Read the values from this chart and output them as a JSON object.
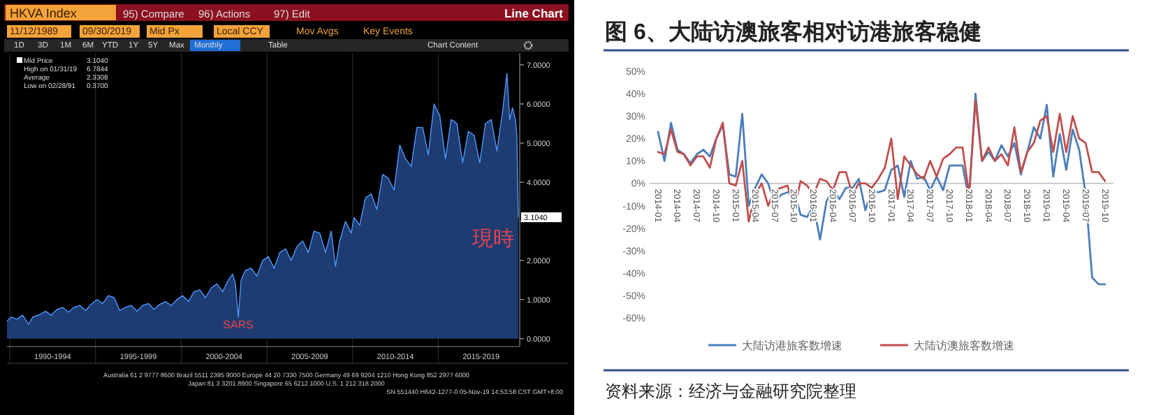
{
  "chart_data": [
    {
      "type": "area",
      "title": "HKVA Index",
      "subtitle": "Line Chart",
      "x": [
        "1989-11",
        "1990-02",
        "1990-06",
        "1990-10",
        "1991-02",
        "1991-05",
        "1991-10",
        "1992-02",
        "1992-06",
        "1992-10",
        "1993-02",
        "1993-06",
        "1993-10",
        "1994-02",
        "1994-06",
        "1994-10",
        "1995-02",
        "1995-06",
        "1995-10",
        "1996-02",
        "1996-06",
        "1996-10",
        "1997-02",
        "1997-06",
        "1997-10",
        "1998-02",
        "1998-06",
        "1998-10",
        "1999-02",
        "1999-06",
        "1999-10",
        "2000-02",
        "2000-06",
        "2000-10",
        "2001-02",
        "2001-06",
        "2001-10",
        "2002-02",
        "2002-06",
        "2002-10",
        "2003-01",
        "2003-03",
        "2003-05",
        "2003-07",
        "2003-10",
        "2004-02",
        "2004-06",
        "2004-10",
        "2005-02",
        "2005-06",
        "2005-10",
        "2006-02",
        "2006-06",
        "2006-10",
        "2007-02",
        "2007-06",
        "2007-10",
        "2008-02",
        "2008-06",
        "2008-10",
        "2009-01",
        "2009-04",
        "2009-08",
        "2009-12",
        "2010-02",
        "2010-06",
        "2010-10",
        "2011-02",
        "2011-06",
        "2011-10",
        "2012-02",
        "2012-06",
        "2012-10",
        "2013-02",
        "2013-06",
        "2013-10",
        "2014-02",
        "2014-06",
        "2014-10",
        "2015-02",
        "2015-06",
        "2015-10",
        "2016-02",
        "2016-06",
        "2016-10",
        "2017-02",
        "2017-06",
        "2017-10",
        "2018-02",
        "2018-06",
        "2018-10",
        "2019-01",
        "2019-03",
        "2019-05",
        "2019-07",
        "2019-08",
        "2019-09"
      ],
      "series": [
        {
          "name": "Mid Price",
          "color": "#1e3c72",
          "values": [
            0.45,
            0.55,
            0.5,
            0.6,
            0.37,
            0.55,
            0.62,
            0.7,
            0.6,
            0.75,
            0.8,
            0.68,
            0.8,
            0.85,
            0.72,
            0.88,
            1.0,
            0.9,
            1.1,
            1.05,
            0.72,
            0.8,
            0.85,
            0.7,
            0.85,
            0.9,
            0.75,
            0.88,
            0.95,
            0.85,
            1.0,
            1.1,
            0.95,
            1.2,
            1.25,
            1.05,
            1.3,
            1.4,
            1.2,
            1.5,
            1.65,
            1.4,
            0.55,
            1.5,
            1.75,
            1.8,
            1.6,
            2.0,
            2.1,
            1.8,
            2.2,
            2.3,
            2.0,
            2.35,
            2.5,
            2.2,
            2.75,
            2.7,
            2.2,
            2.75,
            1.85,
            2.5,
            3.0,
            2.7,
            3.1,
            2.9,
            3.6,
            3.7,
            3.3,
            4.2,
            4.1,
            3.8,
            4.95,
            4.6,
            4.4,
            5.4,
            5.4,
            4.7,
            6.0,
            5.7,
            4.6,
            5.6,
            5.5,
            4.5,
            5.3,
            5.2,
            4.5,
            5.5,
            5.6,
            4.8,
            5.8,
            6.78,
            5.6,
            5.9,
            5.6,
            5.2,
            3.104
          ]
        }
      ],
      "xlim": [
        "1989-11",
        "2019-10"
      ],
      "xticks": [
        {
          "value": "1990-01",
          "label": null
        },
        {
          "value": "1992-07",
          "label": "1990-1994"
        },
        {
          "value": "1995-01",
          "label": null
        },
        {
          "value": "1997-07",
          "label": "1995-1999"
        },
        {
          "value": "2000-01",
          "label": null
        },
        {
          "value": "2002-07",
          "label": "2000-2004"
        },
        {
          "value": "2005-01",
          "label": null
        },
        {
          "value": "2007-07",
          "label": "2005-2009"
        },
        {
          "value": "2010-01",
          "label": null
        },
        {
          "value": "2012-07",
          "label": "2010-2014"
        },
        {
          "value": "2015-01",
          "label": null
        },
        {
          "value": "2017-07",
          "label": "2015-2019"
        }
      ],
      "ylim": [
        -0.2,
        7.3
      ],
      "yticks": [
        {
          "value": 0,
          "label": "0.0000"
        },
        {
          "value": 1,
          "label": "1.0000"
        },
        {
          "value": 2,
          "label": "2.0000"
        },
        {
          "value": 3,
          "label": null
        },
        {
          "value": 4,
          "label": "4.0000"
        },
        {
          "value": 5,
          "label": "5.0000"
        },
        {
          "value": 6,
          "label": "6.0000"
        },
        {
          "value": 7,
          "label": "7.0000"
        }
      ],
      "legend": "top left",
      "grid": "x",
      "annotations": [
        "95) Compare",
        "96) Actions",
        "97) Edit",
        "11/12/1989",
        "09/30/2019",
        "Mid Px",
        "Local CCY",
        "Mov Avgs",
        "Key Events",
        "1D",
        "3D",
        "1M",
        "6M",
        "YTD",
        "1Y",
        "5Y",
        "Max",
        "Monthly",
        "Table",
        "Chart Content",
        "3.1040",
        "High on 01/31/19",
        "6.7844",
        "Average",
        "2.3308",
        "Low on 02/28/91",
        "0.3700",
        {
          "text": "SARS",
          "x": "2003-05",
          "y": 0.55
        },
        {
          "text": "現時",
          "x": "2019-09",
          "y": 3.104
        },
        {
          "text": "3.1040",
          "x": "2019-09",
          "y": 3.104
        },
        "Australia 61 2 9777 8600 Brazil 5511 2395 9000 Europe 44 20 7330 7500 Germany 49 69 9204 1210 Hong Kong 852 2977 6000",
        "Japan 81 3 3201 8900 Singapore 65 6212 1000 U.S. 1 212 318 2000",
        "SN 551440 H642-1277-0 05-Nov-19 14:53:58 CST GMT+8:00"
      ]
    },
    {
      "type": "line",
      "title": "图 6、大陆访澳旅客相对访港旅客稳健",
      "categories": [
        "2014-01",
        null,
        null,
        "2014-04",
        null,
        null,
        "2014-07",
        null,
        null,
        "2014-10",
        null,
        null,
        "2015-01",
        null,
        null,
        "2015-04",
        null,
        null,
        "2015-07",
        null,
        null,
        "2015-10",
        null,
        null,
        "2016-01",
        null,
        null,
        "2016-04",
        null,
        null,
        "2016-07",
        null,
        null,
        "2016-10",
        null,
        null,
        "2017-01",
        null,
        null,
        "2017-04",
        null,
        null,
        "2017-07",
        null,
        null,
        "2017-10",
        null,
        null,
        "2018-01",
        null,
        null,
        "2018-04",
        null,
        null,
        "2018-07",
        null,
        null,
        "2018-10",
        null,
        null,
        "2019-01",
        null,
        null,
        "2019-04",
        null,
        null,
        "2019-07",
        null,
        null,
        "2019-10"
      ],
      "series": [
        {
          "name": "大陆访港旅客数增速",
          "color": "#4a7ebb",
          "values": [
            23,
            10,
            27,
            15,
            13,
            9,
            13,
            15,
            12,
            20,
            26,
            4,
            3,
            31,
            -10,
            -2,
            4,
            0,
            -9,
            -5,
            -4,
            -3,
            -14,
            -15,
            -10,
            -25,
            -8,
            -3,
            -7,
            -2,
            -2,
            2,
            -12,
            -3,
            -4,
            -3,
            6,
            8,
            -6,
            10,
            2,
            3,
            -3,
            3,
            -3,
            8,
            8,
            8,
            -7,
            40,
            10,
            14,
            10,
            17,
            12,
            18,
            4,
            14,
            25,
            20,
            35,
            3,
            22,
            6,
            24,
            15,
            -5,
            -42,
            -45,
            -45
          ]
        },
        {
          "name": "大陆访澳旅客数增速",
          "color": "#c0504d",
          "values": [
            14,
            13,
            24,
            14,
            13,
            8,
            12,
            12,
            7,
            20,
            27,
            0,
            -1,
            10,
            -17,
            -5,
            0,
            -10,
            -3,
            -2,
            -1,
            -12,
            1,
            -1,
            -5,
            2,
            1,
            -3,
            5,
            5,
            -5,
            0,
            0,
            -2,
            2,
            7,
            20,
            -7,
            12,
            8,
            4,
            2,
            10,
            3,
            11,
            13,
            16,
            16,
            -5,
            37,
            10,
            16,
            10,
            13,
            8,
            25,
            5,
            14,
            18,
            28,
            30,
            14,
            31,
            14,
            30,
            20,
            18,
            5,
            5,
            1
          ]
        }
      ],
      "ylim": [
        -60,
        50
      ],
      "yticks": [
        {
          "value": -60,
          "label": "-60%"
        },
        {
          "value": -50,
          "label": "-50%"
        },
        {
          "value": -40,
          "label": "-40%"
        },
        {
          "value": -30,
          "label": "-30%"
        },
        {
          "value": -20,
          "label": "-20%"
        },
        {
          "value": -10,
          "label": "-10%"
        },
        {
          "value": 0,
          "label": "0%"
        },
        {
          "value": 10,
          "label": "10%"
        },
        {
          "value": 20,
          "label": "20%"
        },
        {
          "value": 30,
          "label": "30%"
        },
        {
          "value": 40,
          "label": "40%"
        },
        {
          "value": 50,
          "label": "50%"
        }
      ],
      "legend": "bottom",
      "annotations": [
        "资料来源：经济与金融研究院整理"
      ]
    }
  ]
}
